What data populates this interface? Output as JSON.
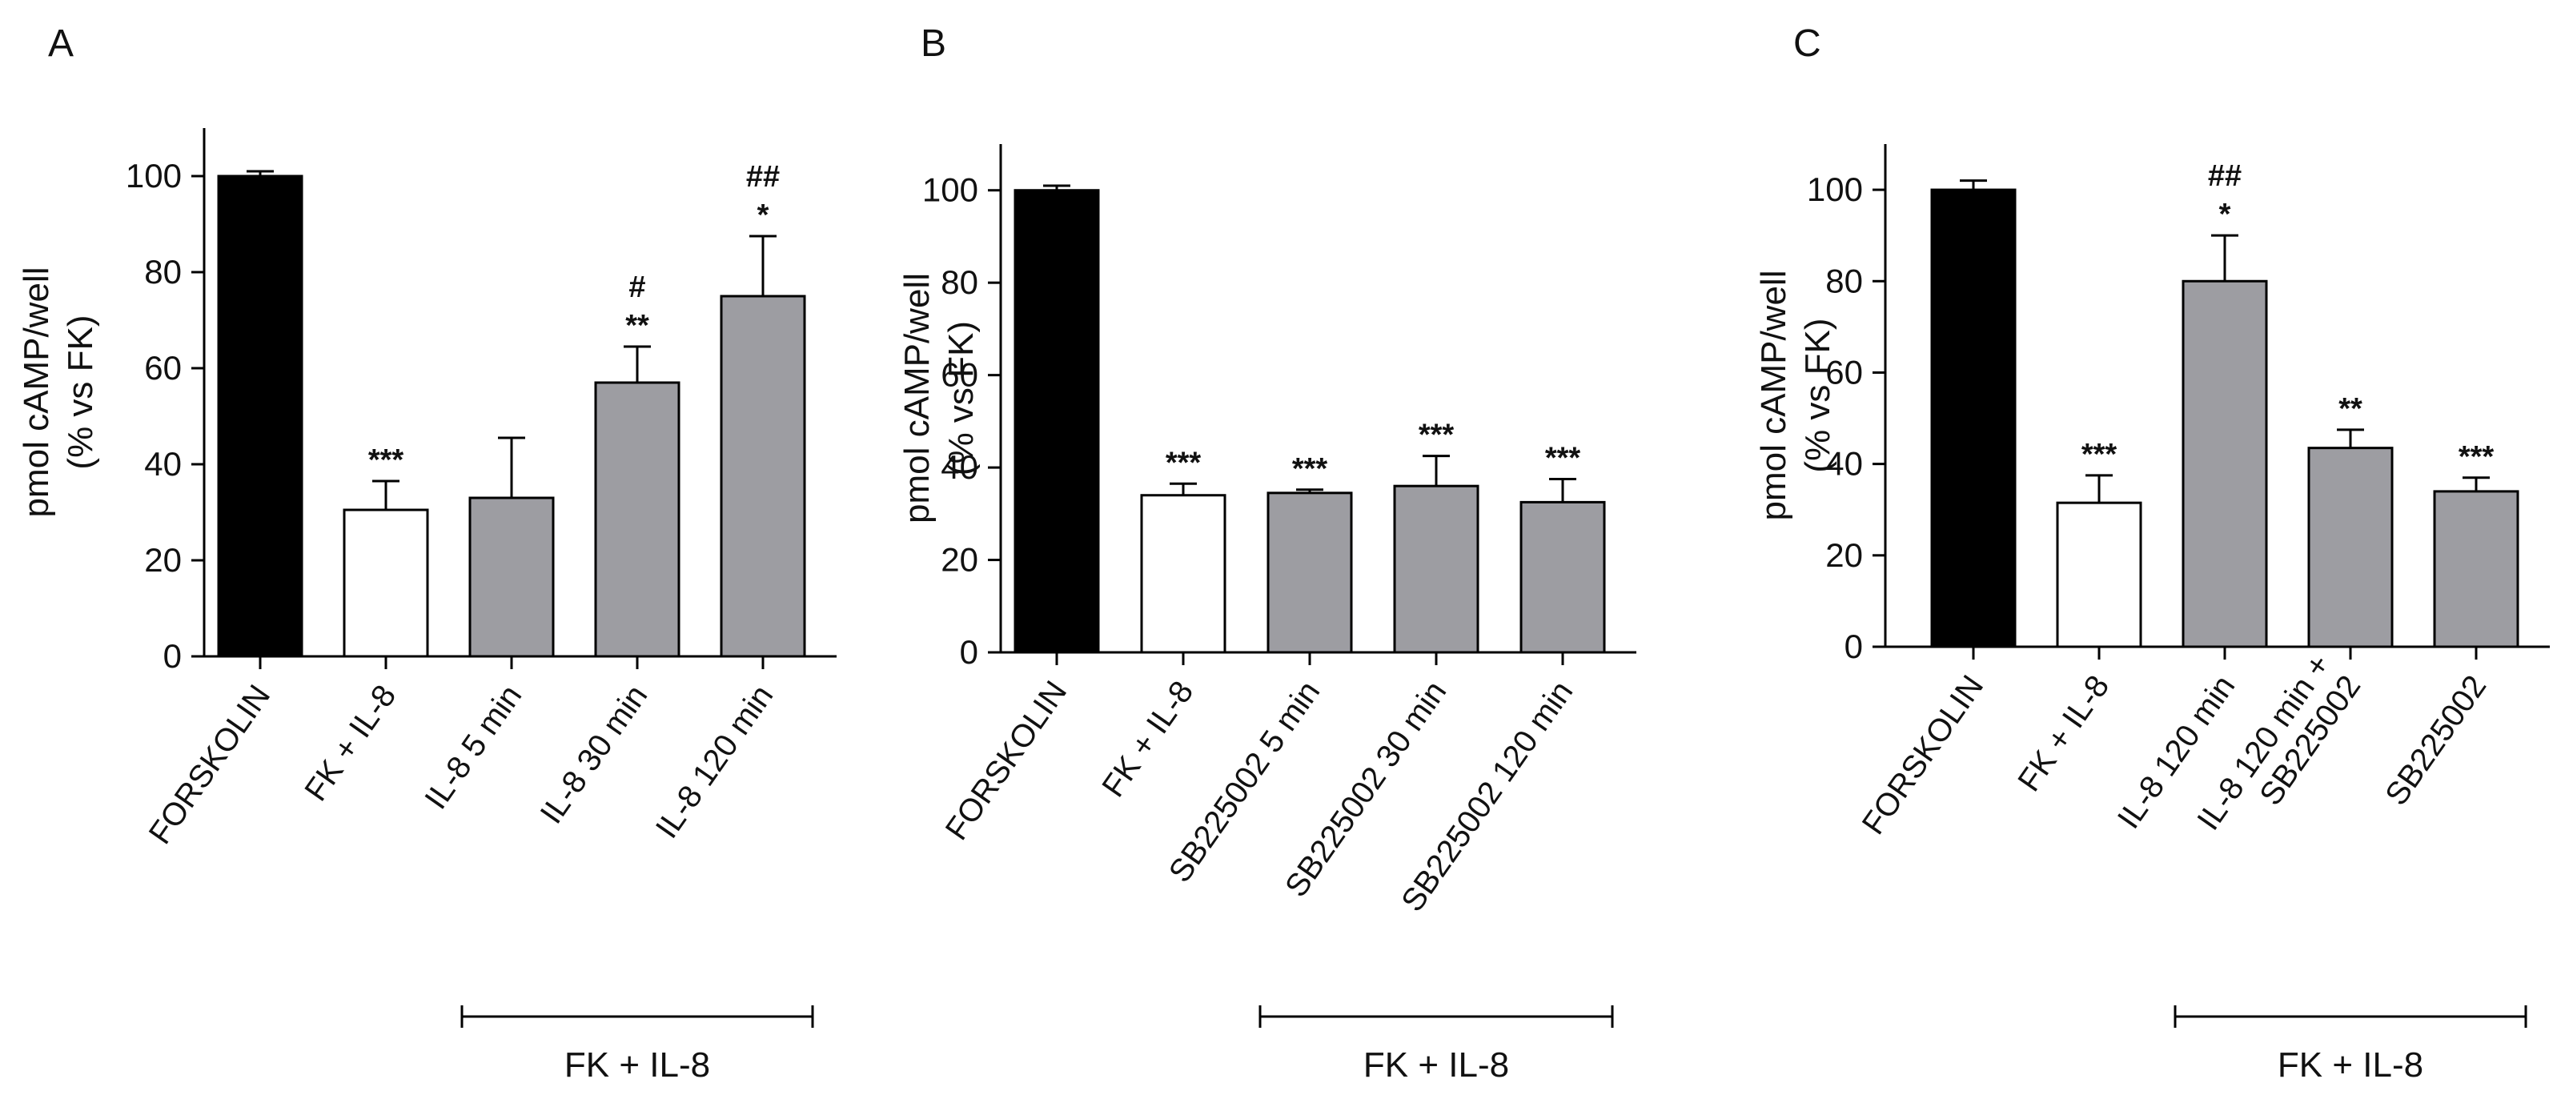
{
  "chart_data": [
    {
      "type": "bar",
      "panel": "A",
      "ylabel": [
        "pmol cAMP/well",
        "(% vs FK)"
      ],
      "ylim": [
        0,
        110
      ],
      "yticks": [
        0,
        20,
        40,
        60,
        80,
        100
      ],
      "categories": [
        "FORSKOLIN",
        "FK + IL-8",
        "IL-8 5 min",
        "IL-8 30 min",
        "IL-8 120 min"
      ],
      "values": [
        100,
        30.5,
        33,
        57,
        75
      ],
      "errors": [
        1,
        6,
        12.5,
        7.5,
        12.5
      ],
      "fills": [
        "#000000",
        "#ffffff",
        "#9d9da2",
        "#9d9da2",
        "#9d9da2"
      ],
      "significance": [
        "",
        "***",
        "",
        "**",
        "*"
      ],
      "hash_significance": [
        "",
        "",
        "",
        "#",
        "##"
      ],
      "group_label": "FK + IL-8",
      "group_span": [
        2,
        4
      ]
    },
    {
      "type": "bar",
      "panel": "B",
      "ylabel": [
        "pmol cAMP/well",
        "(% vs FK)"
      ],
      "ylim": [
        0,
        110
      ],
      "yticks": [
        0,
        20,
        40,
        60,
        80,
        100
      ],
      "categories": [
        "FORSKOLIN",
        "FK + IL-8",
        "SB225002 5 min",
        "SB225002 30 min",
        "SB225002 120 min"
      ],
      "values": [
        100,
        34,
        34.5,
        36,
        32.5
      ],
      "errors": [
        1,
        2.5,
        0.7,
        6.5,
        5
      ],
      "fills": [
        "#000000",
        "#ffffff",
        "#9d9da2",
        "#9d9da2",
        "#9d9da2"
      ],
      "significance": [
        "",
        "***",
        "***",
        "***",
        "***"
      ],
      "hash_significance": [
        "",
        "",
        "",
        "",
        ""
      ],
      "group_label": "FK + IL-8",
      "group_span": [
        2,
        4
      ]
    },
    {
      "type": "bar",
      "panel": "C",
      "ylabel": [
        "pmol cAMP/well",
        "(% vs FK)"
      ],
      "ylim": [
        0,
        110
      ],
      "yticks": [
        0,
        20,
        40,
        60,
        80,
        100
      ],
      "categories": [
        "FORSKOLIN",
        "FK + IL-8",
        "IL-8 120 min",
        "IL-8 120 min +\nSB225002",
        "SB225002"
      ],
      "values": [
        100,
        31.5,
        80,
        43.5,
        34
      ],
      "errors": [
        2,
        6,
        10,
        4,
        3
      ],
      "fills": [
        "#000000",
        "#ffffff",
        "#9d9da2",
        "#9d9da2",
        "#9d9da2"
      ],
      "significance": [
        "",
        "***",
        "*",
        "**",
        "***"
      ],
      "hash_significance": [
        "",
        "",
        "##",
        "",
        ""
      ],
      "group_label": "FK + IL-8",
      "group_span": [
        2,
        4
      ]
    }
  ]
}
